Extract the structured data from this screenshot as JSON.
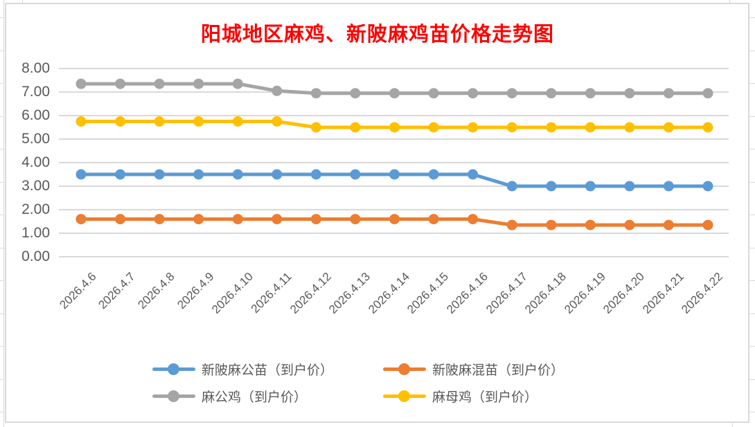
{
  "page": {
    "background": "#FFFFFF"
  },
  "chart_data": {
    "type": "line",
    "title": "阳城地区麻鸡、新陂麻鸡苗价格走势图",
    "title_color": "#FF0000",
    "categories": [
      "2026.4.6",
      "2026.4.7",
      "2026.4.8",
      "2026.4.9",
      "2026.4.10",
      "2026.4.11",
      "2026.4.12",
      "2026.4.13",
      "2026.4.14",
      "2026.4.15",
      "2026.4.16",
      "2026.4.17",
      "2026.4.18",
      "2026.4.19",
      "2026.4.20",
      "2026.4.21",
      "2026.4.22"
    ],
    "series": [
      {
        "name": "新陂麻公苗（到户价）",
        "color": "#5B9BD5",
        "values": [
          3.5,
          3.5,
          3.5,
          3.5,
          3.5,
          3.5,
          3.5,
          3.5,
          3.5,
          3.5,
          3.5,
          3.0,
          3.0,
          3.0,
          3.0,
          3.0,
          3.0
        ]
      },
      {
        "name": "新陂麻混苗（到户价）",
        "color": "#ED7D31",
        "values": [
          1.6,
          1.6,
          1.6,
          1.6,
          1.6,
          1.6,
          1.6,
          1.6,
          1.6,
          1.6,
          1.6,
          1.35,
          1.35,
          1.35,
          1.35,
          1.35,
          1.35
        ]
      },
      {
        "name": "麻公鸡（到户价）",
        "color": "#A5A5A5",
        "values": [
          7.35,
          7.35,
          7.35,
          7.35,
          7.35,
          7.05,
          6.95,
          6.95,
          6.95,
          6.95,
          6.95,
          6.95,
          6.95,
          6.95,
          6.95,
          6.95,
          6.95
        ]
      },
      {
        "name": "麻母鸡（到户价）",
        "color": "#FFC000",
        "values": [
          5.75,
          5.75,
          5.75,
          5.75,
          5.75,
          5.75,
          5.5,
          5.5,
          5.5,
          5.5,
          5.5,
          5.5,
          5.5,
          5.5,
          5.5,
          5.5,
          5.5
        ]
      }
    ],
    "ylim": [
      0,
      8
    ],
    "ytick_step": 1,
    "ytick_labels": [
      "0.00",
      "1.00",
      "2.00",
      "3.00",
      "4.00",
      "5.00",
      "6.00",
      "7.00",
      "8.00"
    ],
    "grid": true,
    "gridline_color": "#D9D9D9",
    "axis_label_color": "#595959",
    "legend_position": "bottom"
  }
}
